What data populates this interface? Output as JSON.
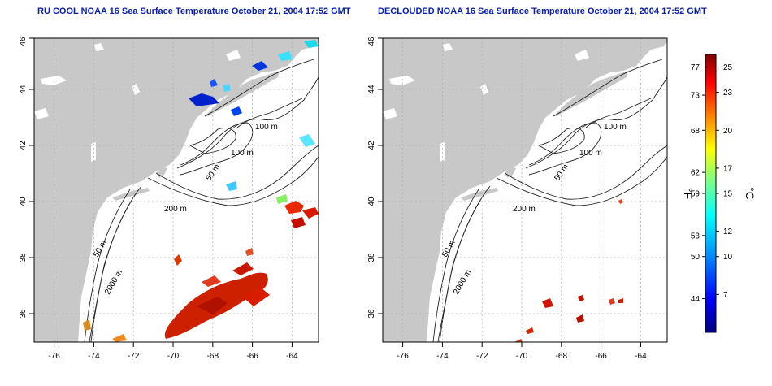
{
  "panels": [
    {
      "title": "RU COOL NOAA 16 Sea Surface Temperature October 21, 2004 17:52 GMT",
      "x_ticks": [
        "-76",
        "-74",
        "-72",
        "-70",
        "-68",
        "-66",
        "-64"
      ],
      "y_ticks": [
        "36",
        "38",
        "40",
        "42",
        "44",
        "46"
      ],
      "contour_labels": [
        "100 m",
        "100 m",
        "50 m",
        "200 m",
        "50 m",
        "2000 m"
      ]
    },
    {
      "title": "DECLOUDED NOAA 16 Sea Surface Temperature October 21, 2004 17:52 GMT",
      "x_ticks": [
        "-76",
        "-74",
        "-72",
        "-70",
        "-68",
        "-66",
        "-64"
      ],
      "y_ticks": [
        "36",
        "38",
        "40",
        "42",
        "44",
        "46"
      ],
      "contour_labels": [
        "100 m",
        "100 m",
        "50 m",
        "200 m",
        "50 m",
        "2000 m"
      ]
    }
  ],
  "colorbar": {
    "fahrenheit_label": "°F",
    "celsius_label": "°C",
    "fahrenheit_ticks": [
      "77",
      "73",
      "68",
      "62",
      "59",
      "53",
      "50",
      "44"
    ],
    "celsius_ticks": [
      "25",
      "23",
      "20",
      "17",
      "15",
      "12",
      "10",
      "7"
    ],
    "range_c": [
      4,
      26
    ]
  },
  "colors": {
    "land": "#c8c8c8",
    "title": "#0b20a8",
    "grid": "#b0b0b0"
  }
}
